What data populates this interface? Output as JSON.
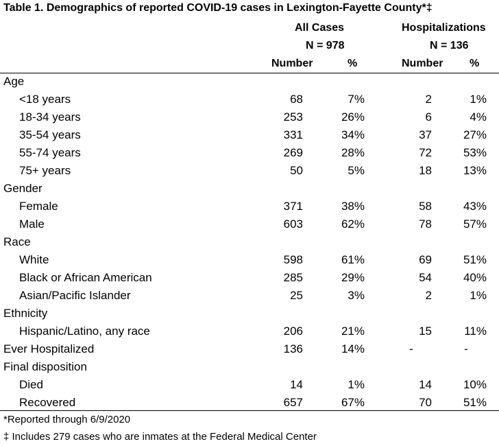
{
  "title": "Table 1. Demographics of reported COVID-19 cases in Lexington-Fayette County*‡",
  "headers": {
    "all_cases": "All Cases",
    "all_n": "N = 978",
    "hosp": "Hospitalizations",
    "hosp_n": "N = 136",
    "number": "Number",
    "pct": "%"
  },
  "rows": [
    {
      "label": "Age",
      "sub": false,
      "values": [
        "",
        "",
        "",
        ""
      ]
    },
    {
      "label": "<18 years",
      "sub": true,
      "values": [
        "68",
        "7%",
        "2",
        "1%"
      ]
    },
    {
      "label": "18-34 years",
      "sub": true,
      "values": [
        "253",
        "26%",
        "6",
        "4%"
      ]
    },
    {
      "label": "35-54 years",
      "sub": true,
      "values": [
        "331",
        "34%",
        "37",
        "27%"
      ]
    },
    {
      "label": "55-74 years",
      "sub": true,
      "values": [
        "269",
        "28%",
        "72",
        "53%"
      ]
    },
    {
      "label": "75+ years",
      "sub": true,
      "values": [
        "50",
        "5%",
        "18",
        "13%"
      ]
    },
    {
      "label": "Gender",
      "sub": false,
      "values": [
        "",
        "",
        "",
        ""
      ]
    },
    {
      "label": "Female",
      "sub": true,
      "values": [
        "371",
        "38%",
        "58",
        "43%"
      ]
    },
    {
      "label": "Male",
      "sub": true,
      "values": [
        "603",
        "62%",
        "78",
        "57%"
      ]
    },
    {
      "label": "Race",
      "sub": false,
      "values": [
        "",
        "",
        "",
        ""
      ]
    },
    {
      "label": "White",
      "sub": true,
      "values": [
        "598",
        "61%",
        "69",
        "51%"
      ]
    },
    {
      "label": "Black or African American",
      "sub": true,
      "values": [
        "285",
        "29%",
        "54",
        "40%"
      ]
    },
    {
      "label": "Asian/Pacific Islander",
      "sub": true,
      "values": [
        "25",
        "3%",
        "2",
        "1%"
      ]
    },
    {
      "label": "Ethnicity",
      "sub": false,
      "values": [
        "",
        "",
        "",
        ""
      ]
    },
    {
      "label": "Hispanic/Latino, any race",
      "sub": true,
      "values": [
        "206",
        "21%",
        "15",
        "11%"
      ]
    },
    {
      "label": "Ever Hospitalized",
      "sub": false,
      "values": [
        "136",
        "14%",
        "-",
        "-"
      ]
    },
    {
      "label": "Final disposition",
      "sub": false,
      "values": [
        "",
        "",
        "",
        ""
      ]
    },
    {
      "label": "Died",
      "sub": true,
      "values": [
        "14",
        "1%",
        "14",
        "10%"
      ]
    },
    {
      "label": "Recovered",
      "sub": true,
      "values": [
        "657",
        "67%",
        "70",
        "51%"
      ]
    }
  ],
  "footnotes": {
    "note1": "*Reported through 6/9/2020",
    "note2": "‡ Includes 279 cases who are inmates at the Federal Medical Center"
  }
}
